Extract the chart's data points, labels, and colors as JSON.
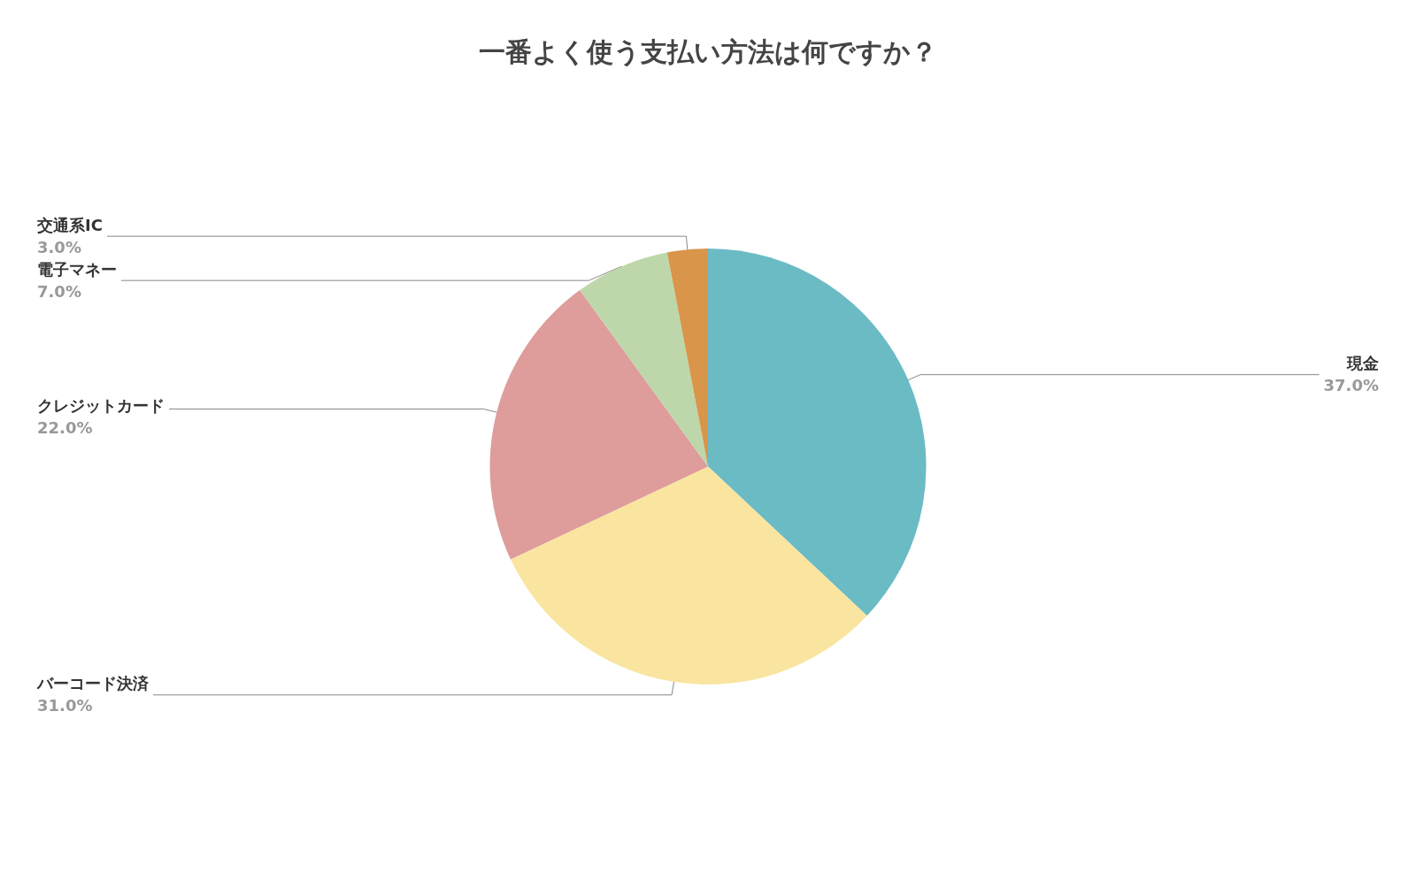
{
  "chart_data": {
    "type": "pie",
    "title": "一番よく使う支払い方法は何ですか？",
    "categories": [
      "現金",
      "バーコード決済",
      "クレジットカード",
      "電子マネー",
      "交通系IC"
    ],
    "values": [
      37,
      31,
      22,
      7,
      3
    ],
    "colors": [
      "#6bbbc4",
      "#f9e5a0",
      "#de9c9b",
      "#bdd7ab",
      "#d9954a"
    ],
    "value_labels": [
      "37.0%",
      "31.0%",
      "22.0%",
      "7.0%",
      "3.0%"
    ],
    "legend": false
  }
}
